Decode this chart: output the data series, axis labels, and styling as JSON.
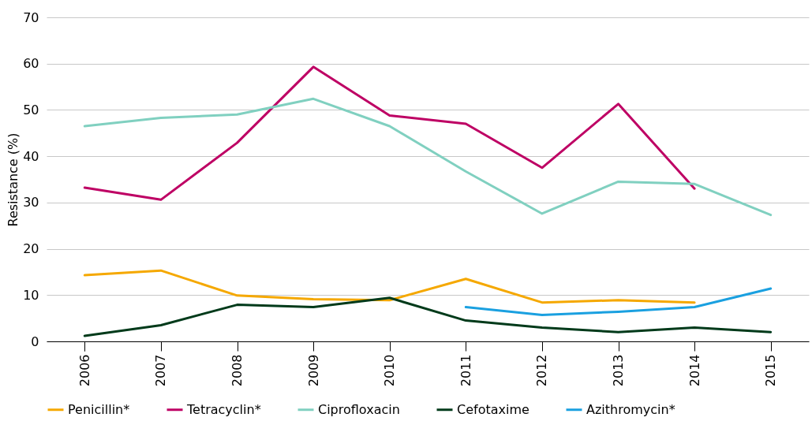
{
  "chart_data": {
    "type": "line",
    "ylabel": "Resistance (%)",
    "categories": [
      "2006",
      "2007",
      "2008",
      "2009",
      "2010",
      "2011",
      "2012",
      "2013",
      "2014",
      "2015"
    ],
    "series": [
      {
        "name": "Penicillin*",
        "color": "#f5a800",
        "values": [
          14.3,
          15.3,
          9.9,
          9.1,
          8.9,
          13.5,
          8.4,
          8.9,
          8.4,
          null
        ]
      },
      {
        "name": "Tetracyclin*",
        "color": "#be0064",
        "values": [
          33.2,
          30.6,
          42.9,
          59.3,
          48.8,
          47.0,
          37.5,
          51.3,
          33.0,
          null
        ]
      },
      {
        "name": "Ciprofloxacin",
        "color": "#80d0c0",
        "values": [
          46.5,
          48.3,
          49.0,
          52.4,
          46.5,
          36.7,
          27.6,
          34.5,
          34.0,
          27.3
        ]
      },
      {
        "name": "Cefotaxime",
        "color": "#003a1a",
        "values": [
          1.2,
          3.5,
          7.9,
          7.4,
          9.4,
          4.5,
          3.0,
          2.0,
          3.0,
          2.0
        ]
      },
      {
        "name": "Azithromycin*",
        "color": "#1aa0e0",
        "values": [
          null,
          null,
          null,
          null,
          null,
          7.4,
          5.7,
          6.4,
          7.4,
          11.4
        ]
      }
    ],
    "ylim": [
      0,
      70
    ],
    "yticks": [
      0,
      10,
      20,
      30,
      40,
      50,
      60,
      70
    ],
    "grid": "y",
    "legend": "bottom",
    "marker": "none",
    "line_style": "solid"
  }
}
